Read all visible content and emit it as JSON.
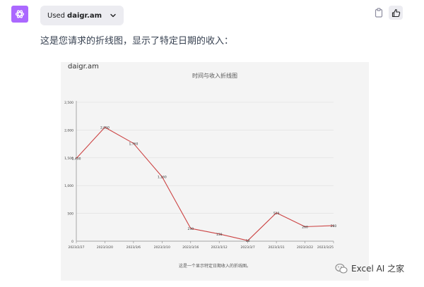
{
  "header": {
    "avatar_icon": "openai-logo-icon",
    "avatar_color": "#ab68ff",
    "plugin_used_label": "Used",
    "plugin_name": "daigr.am"
  },
  "message": {
    "text": "这是您请求的折线图，显示了特定日期的收入："
  },
  "chart_data": {
    "type": "line",
    "brand": "daigr.am",
    "title": "时间与收入折线图",
    "caption": "这是一个显示特定日期收入的折线图。",
    "xlabel": "",
    "ylabel": "",
    "ylim": [
      0,
      2500
    ],
    "y_ticks": [
      "0",
      "500",
      "1,000",
      "1,500",
      "2,000",
      "2,500"
    ],
    "categories": [
      "2023/2/27",
      "2023/3/20",
      "2023/3/6",
      "2023/3/10",
      "2023/3/16",
      "2023/3/12",
      "2023/3/7",
      "2023/3/31",
      "2023/3/22",
      "2023/3/25"
    ],
    "values": [
      1490,
      2050,
      1760,
      1160,
      230,
      130,
      10,
      510,
      260,
      280
    ],
    "value_labels": [
      "1,490",
      "2,050",
      "1,760",
      "1,160",
      "230",
      "130",
      "10",
      "510",
      "260",
      "280"
    ],
    "line_color": "#cc4444",
    "grid": true
  },
  "watermark": {
    "text": "Excel AI 之家",
    "icon": "wechat-icon"
  }
}
